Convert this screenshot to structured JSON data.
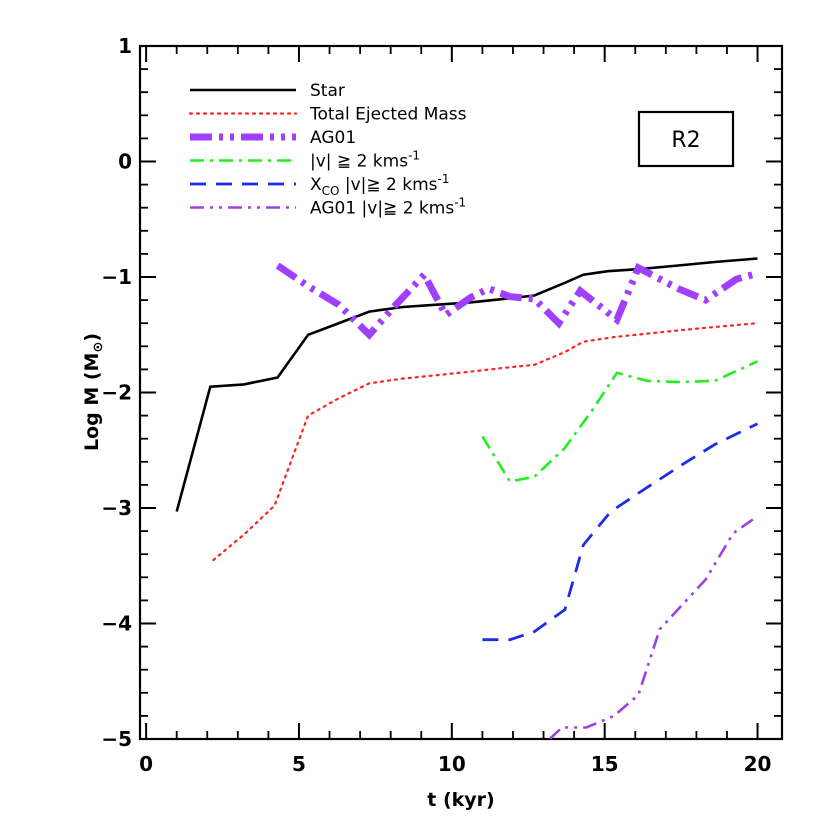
{
  "chart_data": {
    "type": "line",
    "title": "",
    "xlabel": "t (kyr)",
    "ylabel": "Log M (M",
    "ylabel_sun": "⊙",
    "ylabel_close": ")",
    "xlim": [
      -0.2,
      20.8
    ],
    "ylim": [
      -5,
      1
    ],
    "xticks": [
      0,
      5,
      10,
      15,
      20
    ],
    "yticks": [
      1,
      0,
      -1,
      -2,
      -3,
      -4,
      -5
    ],
    "xtick_labels": [
      "0",
      "5",
      "10",
      "15",
      "20"
    ],
    "ytick_labels": [
      "1",
      "0",
      "−1",
      "−2",
      "−3",
      "−4",
      "−5"
    ],
    "grid": false,
    "legend_position": "top-left",
    "annotation": "R2",
    "series": [
      {
        "name": "Star",
        "color": "#000000",
        "style": "solid",
        "x": [
          1.0,
          2.1,
          3.2,
          4.3,
          5.3,
          6.2,
          7.3,
          8.4,
          9.5,
          10.6,
          11.7,
          12.7,
          13.7,
          14.3,
          15.1,
          16.2,
          17.4,
          18.6,
          20.0
        ],
        "y": [
          -3.03,
          -1.95,
          -1.93,
          -1.87,
          -1.5,
          -1.41,
          -1.3,
          -1.26,
          -1.24,
          -1.22,
          -1.19,
          -1.16,
          -1.05,
          -0.98,
          -0.95,
          -0.93,
          -0.9,
          -0.87,
          -0.84
        ]
      },
      {
        "name": "Total Ejected Mass",
        "color": "#ff2020",
        "style": "dotted",
        "x": [
          2.2,
          3.2,
          4.2,
          5.3,
          6.3,
          7.3,
          8.4,
          9.5,
          10.6,
          11.6,
          12.7,
          13.7,
          14.3,
          15.3,
          16.4,
          17.5,
          18.7,
          20.0
        ],
        "y": [
          -3.45,
          -3.23,
          -2.98,
          -2.2,
          -2.05,
          -1.92,
          -1.88,
          -1.85,
          -1.82,
          -1.79,
          -1.76,
          -1.65,
          -1.56,
          -1.52,
          -1.49,
          -1.46,
          -1.43,
          -1.4
        ]
      },
      {
        "name": "AG01",
        "color": "#a040ff",
        "style": "thick-dash-dot-dot",
        "x": [
          4.3,
          5.3,
          6.3,
          7.3,
          8.1,
          9.1,
          9.8,
          10.6,
          11.2,
          11.9,
          12.7,
          13.5,
          14.2,
          15.4,
          16.1,
          17.4,
          18.3,
          19.3,
          20.0
        ],
        "y": [
          -0.9,
          -1.08,
          -1.24,
          -1.5,
          -1.26,
          -0.98,
          -1.33,
          -1.18,
          -1.1,
          -1.17,
          -1.19,
          -1.4,
          -1.12,
          -1.37,
          -0.92,
          -1.1,
          -1.2,
          -1.02,
          -0.97
        ]
      },
      {
        "name": "|v| ≧ 2 kms",
        "name_sup": "-1",
        "color": "#22ee22",
        "style": "dash-dot",
        "x": [
          11.0,
          11.9,
          12.7,
          13.7,
          14.6,
          15.4,
          16.4,
          17.5,
          18.6,
          20.0
        ],
        "y": [
          -2.38,
          -2.77,
          -2.73,
          -2.48,
          -2.15,
          -1.83,
          -1.9,
          -1.91,
          -1.9,
          -1.73
        ]
      },
      {
        "name": "X",
        "name_sub": "CO",
        "name_rest": "|v|≧ 2 kms",
        "name_sup": "-1",
        "color": "#1e2ce8",
        "style": "dashed",
        "x": [
          11.0,
          11.9,
          12.7,
          13.7,
          14.3,
          15.2,
          16.4,
          17.5,
          18.6,
          20.0
        ],
        "y": [
          -4.14,
          -4.14,
          -4.07,
          -3.88,
          -3.32,
          -3.03,
          -2.82,
          -2.63,
          -2.45,
          -2.27
        ]
      },
      {
        "name": "AG01 |v|≧ 2 kms",
        "name_sup": "-1",
        "color": "#a040e0",
        "style": "dash-dot-dot",
        "x": [
          13.2,
          13.6,
          14.4,
          15.3,
          16.1,
          16.8,
          17.6,
          18.3,
          19.2,
          20.0
        ],
        "y": [
          -5.0,
          -4.9,
          -4.9,
          -4.8,
          -4.62,
          -4.05,
          -3.82,
          -3.62,
          -3.22,
          -3.07
        ]
      }
    ]
  }
}
